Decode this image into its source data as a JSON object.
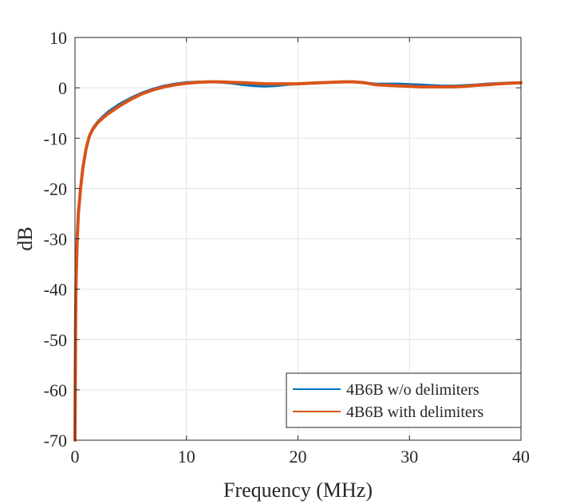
{
  "chart_data": {
    "type": "line",
    "title": "",
    "xlabel": "Frequency (MHz)",
    "ylabel": "dB",
    "xlim": [
      0,
      40
    ],
    "ylim": [
      -70,
      10
    ],
    "xticks": [
      0,
      10,
      20,
      30,
      40
    ],
    "yticks": [
      10,
      0,
      -10,
      -20,
      -30,
      -40,
      -50,
      -60,
      -70
    ],
    "grid": true,
    "legend_position": "bottom-right",
    "series": [
      {
        "name": "4B6B w/o delimiters",
        "color": "#0072BD",
        "x": [
          0.0,
          0.05,
          0.1,
          0.2,
          0.3,
          0.5,
          0.7,
          1.0,
          1.3,
          1.6,
          2.0,
          2.5,
          3.0,
          4.0,
          5.0,
          6.0,
          7.0,
          8.0,
          9.0,
          10.0,
          11.0,
          12.0,
          13.0,
          14.0,
          15.0,
          16.0,
          17.0,
          18.0,
          19.0,
          20.0,
          21.0,
          22.0,
          23.0,
          24.0,
          25.0,
          26.0,
          27.0,
          28.0,
          29.0,
          30.0,
          31.0,
          32.0,
          33.0,
          34.0,
          35.0,
          36.0,
          37.0,
          38.0,
          39.0,
          40.0
        ],
        "y": [
          -70,
          -48,
          -38,
          -30,
          -25,
          -20,
          -16,
          -12,
          -9.5,
          -8.0,
          -6.8,
          -5.7,
          -4.7,
          -3.2,
          -2.0,
          -1.0,
          -0.2,
          0.4,
          0.8,
          1.1,
          1.2,
          1.2,
          1.1,
          0.9,
          0.6,
          0.4,
          0.3,
          0.4,
          0.6,
          0.8,
          0.9,
          1.0,
          1.1,
          1.2,
          1.2,
          1.0,
          0.8,
          0.8,
          0.8,
          0.7,
          0.6,
          0.5,
          0.4,
          0.4,
          0.5,
          0.6,
          0.8,
          0.9,
          1.0,
          1.0
        ]
      },
      {
        "name": "4B6B with delimiters",
        "color": "#D95319",
        "x": [
          0.0,
          0.05,
          0.1,
          0.2,
          0.3,
          0.5,
          0.7,
          1.0,
          1.3,
          1.6,
          2.0,
          2.5,
          3.0,
          4.0,
          5.0,
          6.0,
          7.0,
          8.0,
          9.0,
          10.0,
          11.0,
          12.0,
          13.0,
          14.0,
          15.0,
          16.0,
          17.0,
          18.0,
          19.0,
          20.0,
          21.0,
          22.0,
          23.0,
          24.0,
          25.0,
          26.0,
          27.0,
          28.0,
          29.0,
          30.0,
          31.0,
          32.0,
          33.0,
          34.0,
          35.0,
          36.0,
          37.0,
          38.0,
          39.0,
          40.0
        ],
        "y": [
          -70,
          -48,
          -38,
          -30,
          -25,
          -20,
          -16,
          -12,
          -9.5,
          -8.2,
          -7.0,
          -6.0,
          -5.1,
          -3.6,
          -2.3,
          -1.2,
          -0.4,
          0.2,
          0.6,
          0.9,
          1.1,
          1.2,
          1.2,
          1.1,
          1.0,
          0.9,
          0.8,
          0.8,
          0.8,
          0.8,
          0.9,
          1.0,
          1.1,
          1.2,
          1.2,
          1.0,
          0.6,
          0.5,
          0.4,
          0.3,
          0.2,
          0.2,
          0.2,
          0.2,
          0.3,
          0.5,
          0.6,
          0.8,
          0.9,
          1.0
        ]
      }
    ]
  }
}
